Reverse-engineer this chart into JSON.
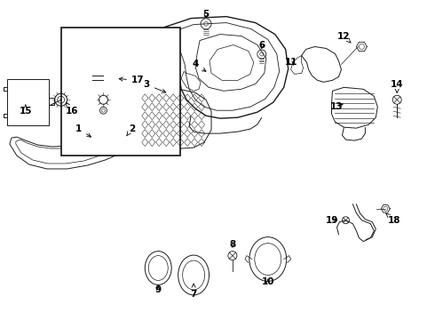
{
  "bg_color": "#ffffff",
  "line_color": "#1a1a1a",
  "fig_width": 4.9,
  "fig_height": 3.6,
  "dpi": 100,
  "label_fs": 7.5
}
